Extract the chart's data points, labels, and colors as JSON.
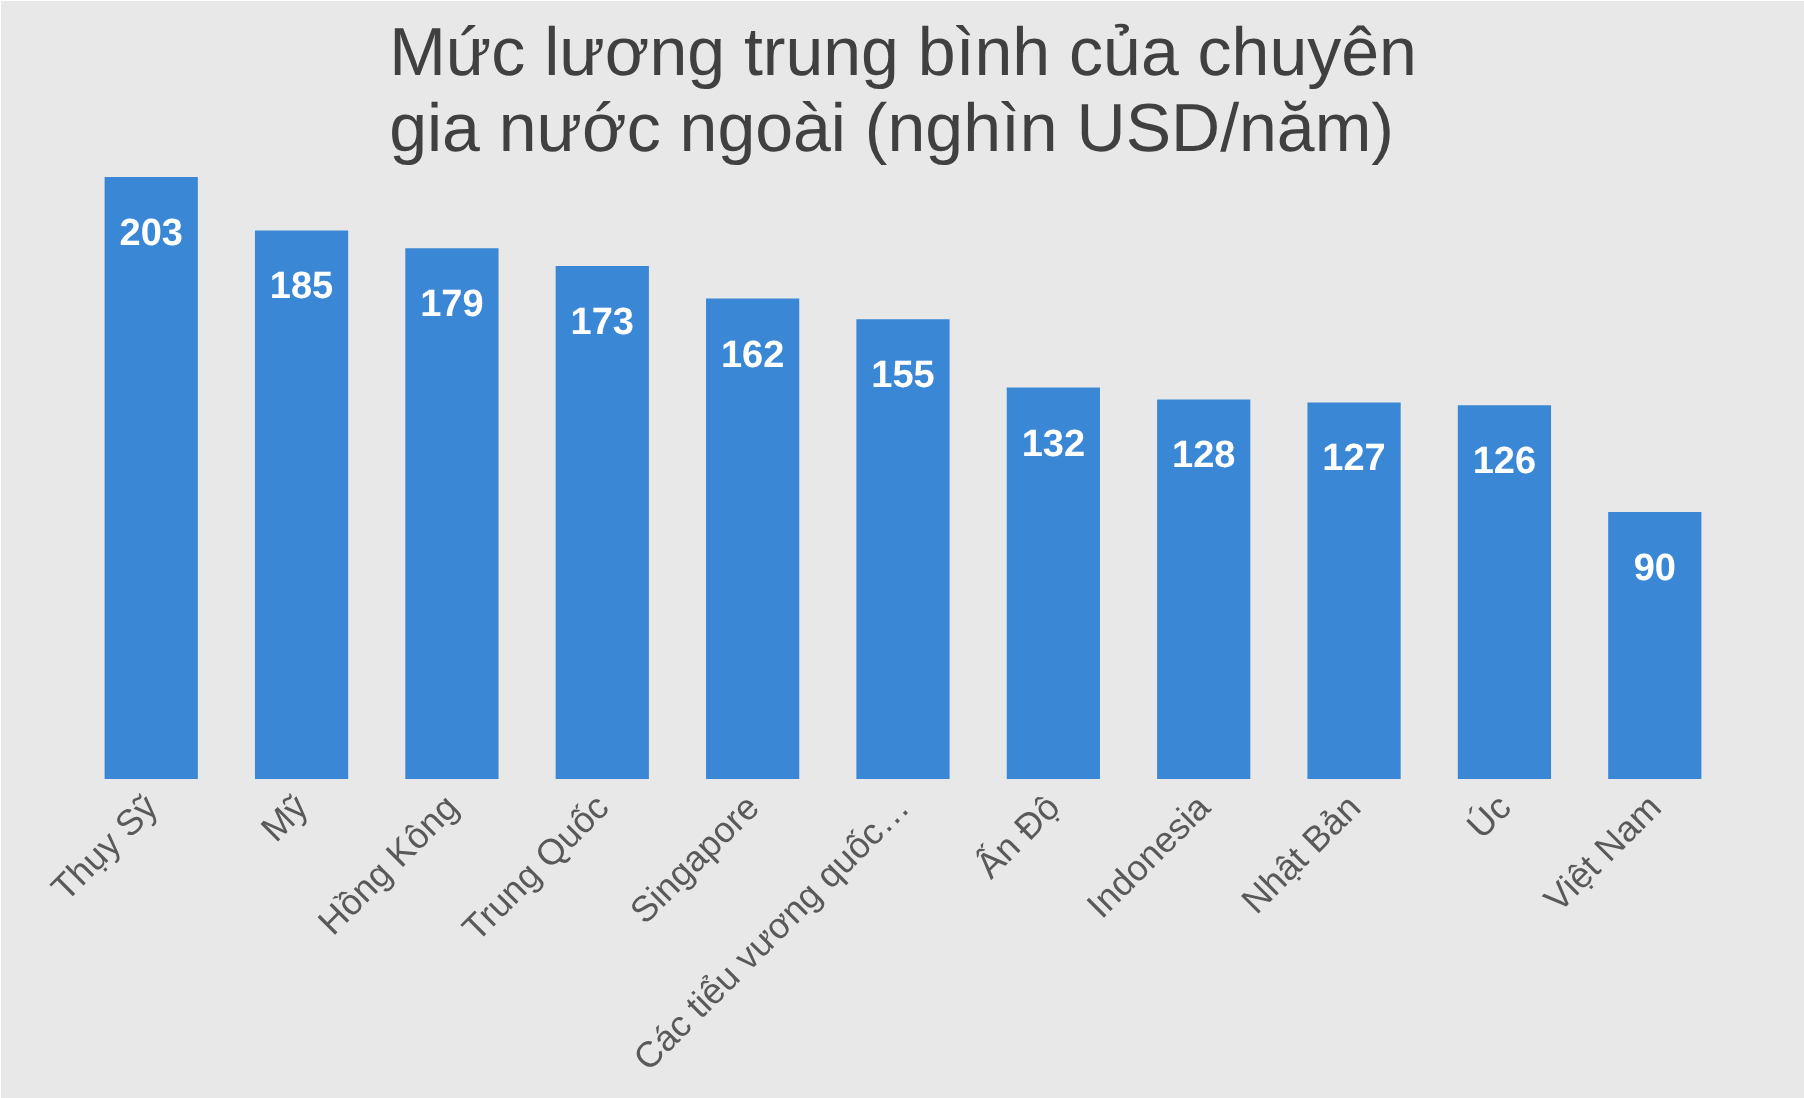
{
  "chart_data": {
    "type": "bar",
    "title": "Mức lương trung bình của chuyên gia nước ngoài (nghìn USD/năm)",
    "categories": [
      "Thụy Sỹ",
      "Mỹ",
      "Hồng Kông",
      "Trung Quốc",
      "Singapore",
      "Các tiểu vương quốc…",
      "Ấn Độ",
      "Indonesia",
      "Nhật Bản",
      "Úc",
      "Việt Nam"
    ],
    "values": [
      203,
      185,
      179,
      173,
      162,
      155,
      132,
      128,
      127,
      126,
      90
    ],
    "color": "#3a87d6",
    "data_labels": true
  }
}
